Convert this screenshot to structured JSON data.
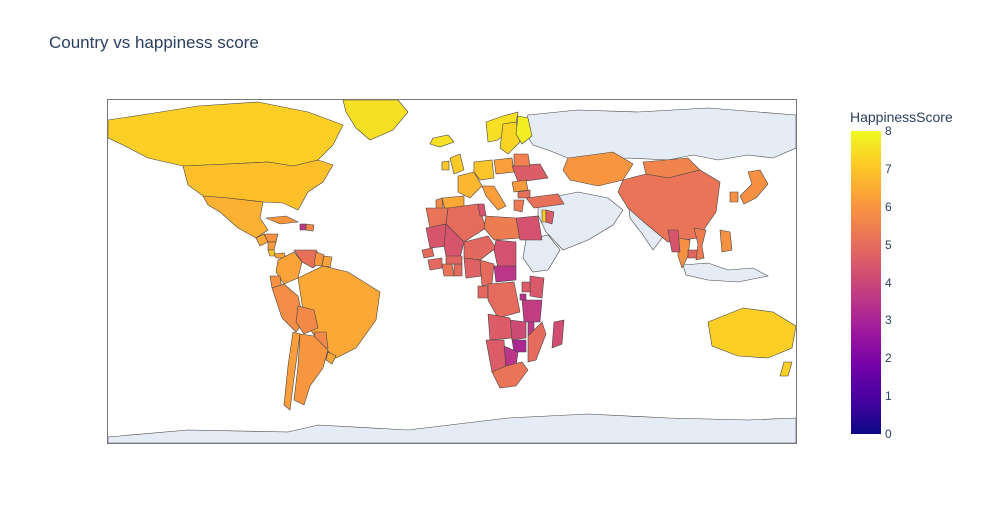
{
  "chart_data": {
    "type": "choropleth",
    "title": "Country vs happiness score",
    "colorbar": {
      "title": "HappinessScore",
      "min": 0,
      "max": 8,
      "ticks": [
        "0",
        "1",
        "2",
        "3",
        "4",
        "5",
        "6",
        "7",
        "8"
      ],
      "colorscale": [
        "#0d0887",
        "#46039f",
        "#7201a8",
        "#9c179e",
        "#bd3786",
        "#d8576b",
        "#ed7953",
        "#fb9f3a",
        "#fdca26",
        "#f0f921"
      ]
    },
    "no_data_color": "#e5ecf6",
    "countries": [
      {
        "name": "Canada",
        "value": 7.2
      },
      {
        "name": "United States",
        "value": 6.9
      },
      {
        "name": "Mexico",
        "value": 6.6
      },
      {
        "name": "Guatemala",
        "value": 6.4
      },
      {
        "name": "Honduras",
        "value": 5.9
      },
      {
        "name": "Nicaragua",
        "value": 6.1
      },
      {
        "name": "Costa Rica",
        "value": 7.0
      },
      {
        "name": "Panama",
        "value": 6.3
      },
      {
        "name": "Cuba",
        "value": 6.0
      },
      {
        "name": "Haiti",
        "value": 3.6
      },
      {
        "name": "Dominican Republic",
        "value": 5.7
      },
      {
        "name": "Colombia",
        "value": 6.3
      },
      {
        "name": "Venezuela",
        "value": 5.1
      },
      {
        "name": "Guyana",
        "value": 6.0
      },
      {
        "name": "Suriname",
        "value": 6.3
      },
      {
        "name": "Ecuador",
        "value": 5.9
      },
      {
        "name": "Peru",
        "value": 5.8
      },
      {
        "name": "Brazil",
        "value": 6.4
      },
      {
        "name": "Bolivia",
        "value": 5.7
      },
      {
        "name": "Paraguay",
        "value": 5.7
      },
      {
        "name": "Chile",
        "value": 6.2
      },
      {
        "name": "Argentina",
        "value": 6.0
      },
      {
        "name": "Uruguay",
        "value": 6.4
      },
      {
        "name": "Greenland",
        "value": 7.5
      },
      {
        "name": "Iceland",
        "value": 7.5
      },
      {
        "name": "Norway",
        "value": 7.5
      },
      {
        "name": "Sweden",
        "value": 7.3
      },
      {
        "name": "Finland",
        "value": 7.8
      },
      {
        "name": "United Kingdom",
        "value": 7.1
      },
      {
        "name": "Ireland",
        "value": 7.0
      },
      {
        "name": "France",
        "value": 6.7
      },
      {
        "name": "Spain",
        "value": 6.4
      },
      {
        "name": "Portugal",
        "value": 5.7
      },
      {
        "name": "Germany",
        "value": 7.0
      },
      {
        "name": "Italy",
        "value": 6.2
      },
      {
        "name": "Poland",
        "value": 6.2
      },
      {
        "name": "Ukraine",
        "value": 4.6
      },
      {
        "name": "Belarus",
        "value": 5.5
      },
      {
        "name": "Romania",
        "value": 6.1
      },
      {
        "name": "Bulgaria",
        "value": 5.1
      },
      {
        "name": "Greece",
        "value": 5.3
      },
      {
        "name": "Turkey",
        "value": 5.1
      },
      {
        "name": "Kazakhstan",
        "value": 6.0
      },
      {
        "name": "Mongolia",
        "value": 5.6
      },
      {
        "name": "China",
        "value": 5.2
      },
      {
        "name": "Japan",
        "value": 5.9
      },
      {
        "name": "South Korea",
        "value": 5.9
      },
      {
        "name": "Morocco",
        "value": 5.2
      },
      {
        "name": "Algeria",
        "value": 5.0
      },
      {
        "name": "Tunisia",
        "value": 4.4
      },
      {
        "name": "Libya",
        "value": 5.4
      },
      {
        "name": "Egypt",
        "value": 4.3
      },
      {
        "name": "Israel",
        "value": 7.1
      },
      {
        "name": "Jordan",
        "value": 4.6
      },
      {
        "name": "Mauritania",
        "value": 4.4
      },
      {
        "name": "Mali",
        "value": 4.4
      },
      {
        "name": "Niger",
        "value": 4.9
      },
      {
        "name": "Chad",
        "value": 4.3
      },
      {
        "name": "Senegal",
        "value": 5.0
      },
      {
        "name": "Guinea",
        "value": 4.9
      },
      {
        "name": "Ivory Coast",
        "value": 5.2
      },
      {
        "name": "Ghana",
        "value": 5.0
      },
      {
        "name": "Burkina Faso",
        "value": 4.8
      },
      {
        "name": "Nigeria",
        "value": 4.7
      },
      {
        "name": "Cameroon",
        "value": 5.0
      },
      {
        "name": "Central African Republic",
        "value": 3.5
      },
      {
        "name": "Gabon",
        "value": 4.9
      },
      {
        "name": "Congo",
        "value": 5.0
      },
      {
        "name": "Kenya",
        "value": 4.5
      },
      {
        "name": "Uganda",
        "value": 4.6
      },
      {
        "name": "Tanzania",
        "value": 3.7
      },
      {
        "name": "Rwanda",
        "value": 3.4
      },
      {
        "name": "Zambia",
        "value": 4.1
      },
      {
        "name": "Zimbabwe",
        "value": 3.1
      },
      {
        "name": "Malawi",
        "value": 3.6
      },
      {
        "name": "Mozambique",
        "value": 5.0
      },
      {
        "name": "Angola",
        "value": 4.6
      },
      {
        "name": "Namibia",
        "value": 4.6
      },
      {
        "name": "Botswana",
        "value": 3.5
      },
      {
        "name": "South Africa",
        "value": 5.2
      },
      {
        "name": "Madagascar",
        "value": 4.2
      },
      {
        "name": "Thailand",
        "value": 5.9
      },
      {
        "name": "Cambodia",
        "value": 4.8
      },
      {
        "name": "Vietnam",
        "value": 5.4
      },
      {
        "name": "Myanmar",
        "value": 4.4
      },
      {
        "name": "Philippines",
        "value": 5.9
      },
      {
        "name": "Australia",
        "value": 7.2
      },
      {
        "name": "New Zealand",
        "value": 7.2
      }
    ]
  }
}
